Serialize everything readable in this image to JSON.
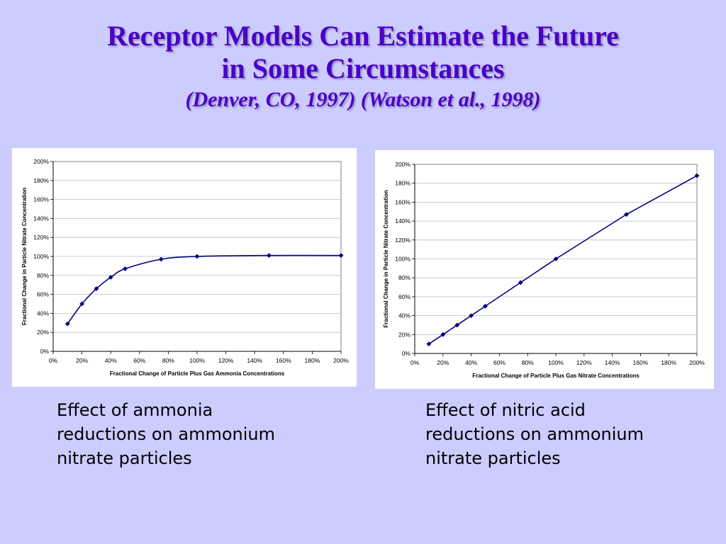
{
  "slide": {
    "title_line1": "Receptor Models Can Estimate the Future",
    "title_line2": "in Some Circumstances",
    "subtitle": "(Denver, CO, 1997) (Watson et al., 1998)",
    "colors": {
      "background": "#ccccff",
      "title": "#4b00c8",
      "series": "#000080"
    }
  },
  "captions": {
    "left": [
      "Effect of ammonia",
      "reductions on ammonium",
      "nitrate particles"
    ],
    "right": [
      "Effect of nitric acid",
      "reductions on ammonium",
      "nitrate particles"
    ]
  },
  "chart_data": [
    {
      "type": "line",
      "title": "",
      "xlabel": "Fractional Change of Particle Plus Gas Ammonia Concentrations",
      "ylabel": "Fractional Change in Particle Nitrate Concentration",
      "xlim": [
        0,
        200
      ],
      "ylim": [
        0,
        200
      ],
      "xticks": [
        "0%",
        "20%",
        "40%",
        "60%",
        "80%",
        "100%",
        "120%",
        "140%",
        "160%",
        "180%",
        "200%"
      ],
      "yticks": [
        "0%",
        "20%",
        "40%",
        "60%",
        "80%",
        "100%",
        "120%",
        "140%",
        "160%",
        "180%",
        "200%"
      ],
      "grid": true,
      "smooth": true,
      "series": [
        {
          "x": [
            10,
            20,
            30,
            40,
            50,
            75,
            100,
            150,
            200
          ],
          "y": [
            29,
            50,
            66,
            78,
            87,
            97,
            100,
            101,
            101
          ]
        }
      ]
    },
    {
      "type": "line",
      "title": "",
      "xlabel": "Fractional Change of Particle Plus Gas Nitrate Concentrations",
      "ylabel": "Fractional Change in Particle Nitrate Concentration",
      "xlim": [
        0,
        200
      ],
      "ylim": [
        0,
        200
      ],
      "xticks": [
        "0%",
        "20%",
        "40%",
        "60%",
        "80%",
        "100%",
        "120%",
        "140%",
        "160%",
        "180%",
        "200%"
      ],
      "yticks": [
        "0%",
        "20%",
        "40%",
        "60%",
        "80%",
        "100%",
        "120%",
        "140%",
        "160%",
        "180%",
        "200%"
      ],
      "grid": true,
      "smooth": false,
      "series": [
        {
          "x": [
            10,
            20,
            30,
            40,
            50,
            75,
            100,
            150,
            200
          ],
          "y": [
            10,
            20,
            30,
            40,
            50,
            75,
            100,
            147,
            188
          ]
        }
      ]
    }
  ]
}
